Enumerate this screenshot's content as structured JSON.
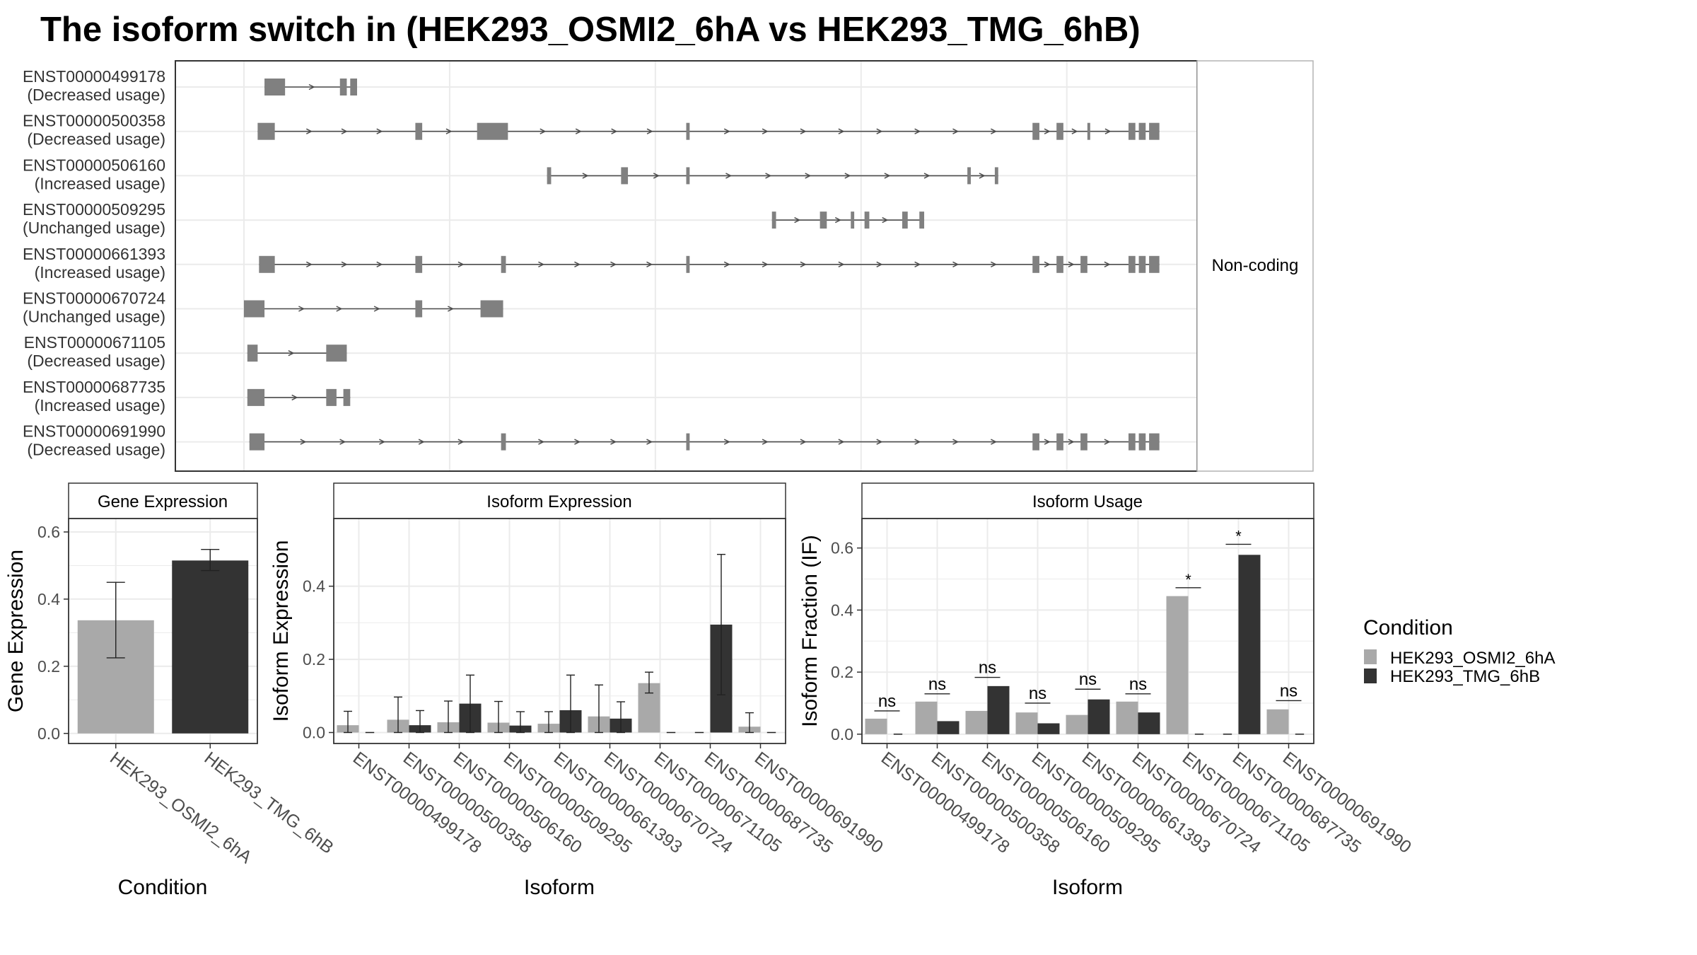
{
  "title": "The isoform switch in  (HEK293_OSMI2_6hA vs HEK293_TMG_6hB)",
  "colors": {
    "condA": "#a9a9a9",
    "condB": "#333333",
    "exon": "#808080",
    "intron": "#4d4d4d",
    "grid": "#ebebeb",
    "frame": "#333333",
    "strip_bg": "#ffffff"
  },
  "structure": {
    "strip_label": "Non-coding",
    "transcripts": [
      {
        "id": "ENST00000499178",
        "usage": "(Decreased usage)",
        "exons": [
          [
            104.3,
            104.6
          ],
          [
            105.4,
            105.5
          ],
          [
            105.55,
            105.65
          ]
        ]
      },
      {
        "id": "ENST00000500358",
        "usage": "(Decreased usage)",
        "exons": [
          [
            104.2,
            104.45
          ],
          [
            106.5,
            106.6
          ],
          [
            107.4,
            107.85
          ],
          [
            110.45,
            110.5
          ],
          [
            115.5,
            115.6
          ],
          [
            115.85,
            115.95
          ],
          [
            116.3,
            116.32
          ],
          [
            116.9,
            117.0
          ],
          [
            117.05,
            117.15
          ],
          [
            117.2,
            117.35
          ]
        ]
      },
      {
        "id": "ENST00000506160",
        "usage": "(Increased usage)",
        "exons": [
          [
            108.42,
            108.48
          ],
          [
            109.5,
            109.6
          ],
          [
            110.45,
            110.5
          ],
          [
            114.55,
            114.6
          ],
          [
            114.95,
            115.0
          ]
        ]
      },
      {
        "id": "ENST00000509295",
        "usage": "(Unchanged usage)",
        "exons": [
          [
            111.7,
            111.76
          ],
          [
            112.4,
            112.5
          ],
          [
            112.85,
            112.9
          ],
          [
            113.05,
            113.12
          ],
          [
            113.6,
            113.68
          ],
          [
            113.85,
            113.92
          ]
        ]
      },
      {
        "id": "ENST00000661393",
        "usage": "(Increased usage)",
        "exons": [
          [
            104.22,
            104.45
          ],
          [
            106.5,
            106.6
          ],
          [
            107.75,
            107.82
          ],
          [
            110.45,
            110.5
          ],
          [
            115.5,
            115.6
          ],
          [
            115.85,
            115.95
          ],
          [
            116.2,
            116.3
          ],
          [
            116.9,
            117.0
          ],
          [
            117.05,
            117.15
          ],
          [
            117.2,
            117.35
          ]
        ]
      },
      {
        "id": "ENST00000670724",
        "usage": "(Unchanged usage)",
        "exons": [
          [
            104.0,
            104.3
          ],
          [
            106.5,
            106.6
          ],
          [
            107.45,
            107.78
          ]
        ]
      },
      {
        "id": "ENST00000671105",
        "usage": "(Decreased usage)",
        "exons": [
          [
            104.05,
            104.2
          ],
          [
            105.2,
            105.5
          ]
        ]
      },
      {
        "id": "ENST00000687735",
        "usage": "(Increased usage)",
        "exons": [
          [
            104.05,
            104.3
          ],
          [
            105.2,
            105.35
          ],
          [
            105.45,
            105.55
          ]
        ]
      },
      {
        "id": "ENST00000691990",
        "usage": "(Decreased usage)",
        "exons": [
          [
            104.08,
            104.3
          ],
          [
            107.75,
            107.82
          ],
          [
            110.45,
            110.5
          ],
          [
            115.5,
            115.6
          ],
          [
            115.85,
            115.95
          ],
          [
            116.2,
            116.3
          ],
          [
            116.9,
            117.0
          ],
          [
            117.05,
            117.15
          ],
          [
            117.2,
            117.35
          ]
        ]
      }
    ],
    "xlim": [
      103.0,
      117.9
    ],
    "xgrid": [
      104.0,
      107.0,
      110.0,
      113.0,
      116.0
    ]
  },
  "chart_data": [
    {
      "type": "bar",
      "strip_title": "Gene Expression",
      "xlabel": "Condition",
      "ylabel": "Gene Expression",
      "ylim": [
        -0.03,
        0.64
      ],
      "yticks": [
        "0.0",
        "0.2",
        "0.4",
        "0.6"
      ],
      "ytick_values": [
        0.0,
        0.2,
        0.4,
        0.6
      ],
      "categories": [
        "HEK293_OSMI2_6hA",
        "HEK293_TMG_6hB"
      ],
      "values": [
        0.337,
        0.515
      ],
      "err_low": [
        0.225,
        0.485
      ],
      "err_high": [
        0.45,
        0.548
      ]
    },
    {
      "type": "bar",
      "strip_title": "Isoform Expression",
      "xlabel": "Isoform",
      "ylabel": "Isoform Expression",
      "ylim": [
        -0.03,
        0.585
      ],
      "yticks": [
        "0.0",
        "0.2",
        "0.4"
      ],
      "ytick_values": [
        0.0,
        0.2,
        0.4
      ],
      "categories": [
        "ENST00000499178",
        "ENST00000500358",
        "ENST00000506160",
        "ENST00000509295",
        "ENST00000661393",
        "ENST00000670724",
        "ENST00000671105",
        "ENST00000687735",
        "ENST00000691990"
      ],
      "series": [
        {
          "name": "HEK293_OSMI2_6hA",
          "values": [
            0.02,
            0.035,
            0.028,
            0.027,
            0.024,
            0.044,
            0.135,
            0.0,
            0.016
          ],
          "err_low": [
            0.0,
            0.0,
            0.0,
            0.0,
            0.0,
            0.0,
            0.108,
            null,
            0.0
          ],
          "err_high": [
            0.058,
            0.097,
            0.086,
            0.085,
            0.057,
            0.13,
            0.165,
            null,
            0.054
          ]
        },
        {
          "name": "HEK293_TMG_6hB",
          "values": [
            0.0,
            0.02,
            0.079,
            0.019,
            0.061,
            0.038,
            0.0,
            0.295,
            0.0
          ],
          "err_low": [
            null,
            0.0,
            0.0,
            0.0,
            0.0,
            0.0,
            null,
            0.103,
            null
          ],
          "err_high": [
            null,
            0.06,
            0.157,
            0.057,
            0.157,
            0.084,
            null,
            0.487,
            null
          ]
        }
      ]
    },
    {
      "type": "bar",
      "strip_title": "Isoform Usage",
      "xlabel": "Isoform",
      "ylabel": "Isoform Fraction (IF)",
      "ylim": [
        -0.03,
        0.695
      ],
      "yticks": [
        "0.0",
        "0.2",
        "0.4",
        "0.6"
      ],
      "ytick_values": [
        0.0,
        0.2,
        0.4,
        0.6
      ],
      "categories": [
        "ENST00000499178",
        "ENST00000500358",
        "ENST00000506160",
        "ENST00000509295",
        "ENST00000661393",
        "ENST00000670724",
        "ENST00000671105",
        "ENST00000687735",
        "ENST00000691990"
      ],
      "series": [
        {
          "name": "HEK293_OSMI2_6hA",
          "values": [
            0.05,
            0.105,
            0.075,
            0.07,
            0.062,
            0.105,
            0.445,
            0.0,
            0.08
          ]
        },
        {
          "name": "HEK293_TMG_6hB",
          "values": [
            0.0,
            0.042,
            0.155,
            0.035,
            0.112,
            0.07,
            0.0,
            0.578,
            0.0
          ]
        }
      ],
      "significance": [
        "ns",
        "ns",
        "ns",
        "ns",
        "ns",
        "ns",
        "*",
        "*",
        "ns"
      ],
      "significance_level": [
        0.075,
        0.13,
        0.183,
        0.1,
        0.145,
        0.13,
        0.472,
        0.612,
        0.108
      ]
    }
  ],
  "legend": {
    "title": "Condition",
    "items": [
      "HEK293_OSMI2_6hA",
      "HEK293_TMG_6hB"
    ]
  }
}
